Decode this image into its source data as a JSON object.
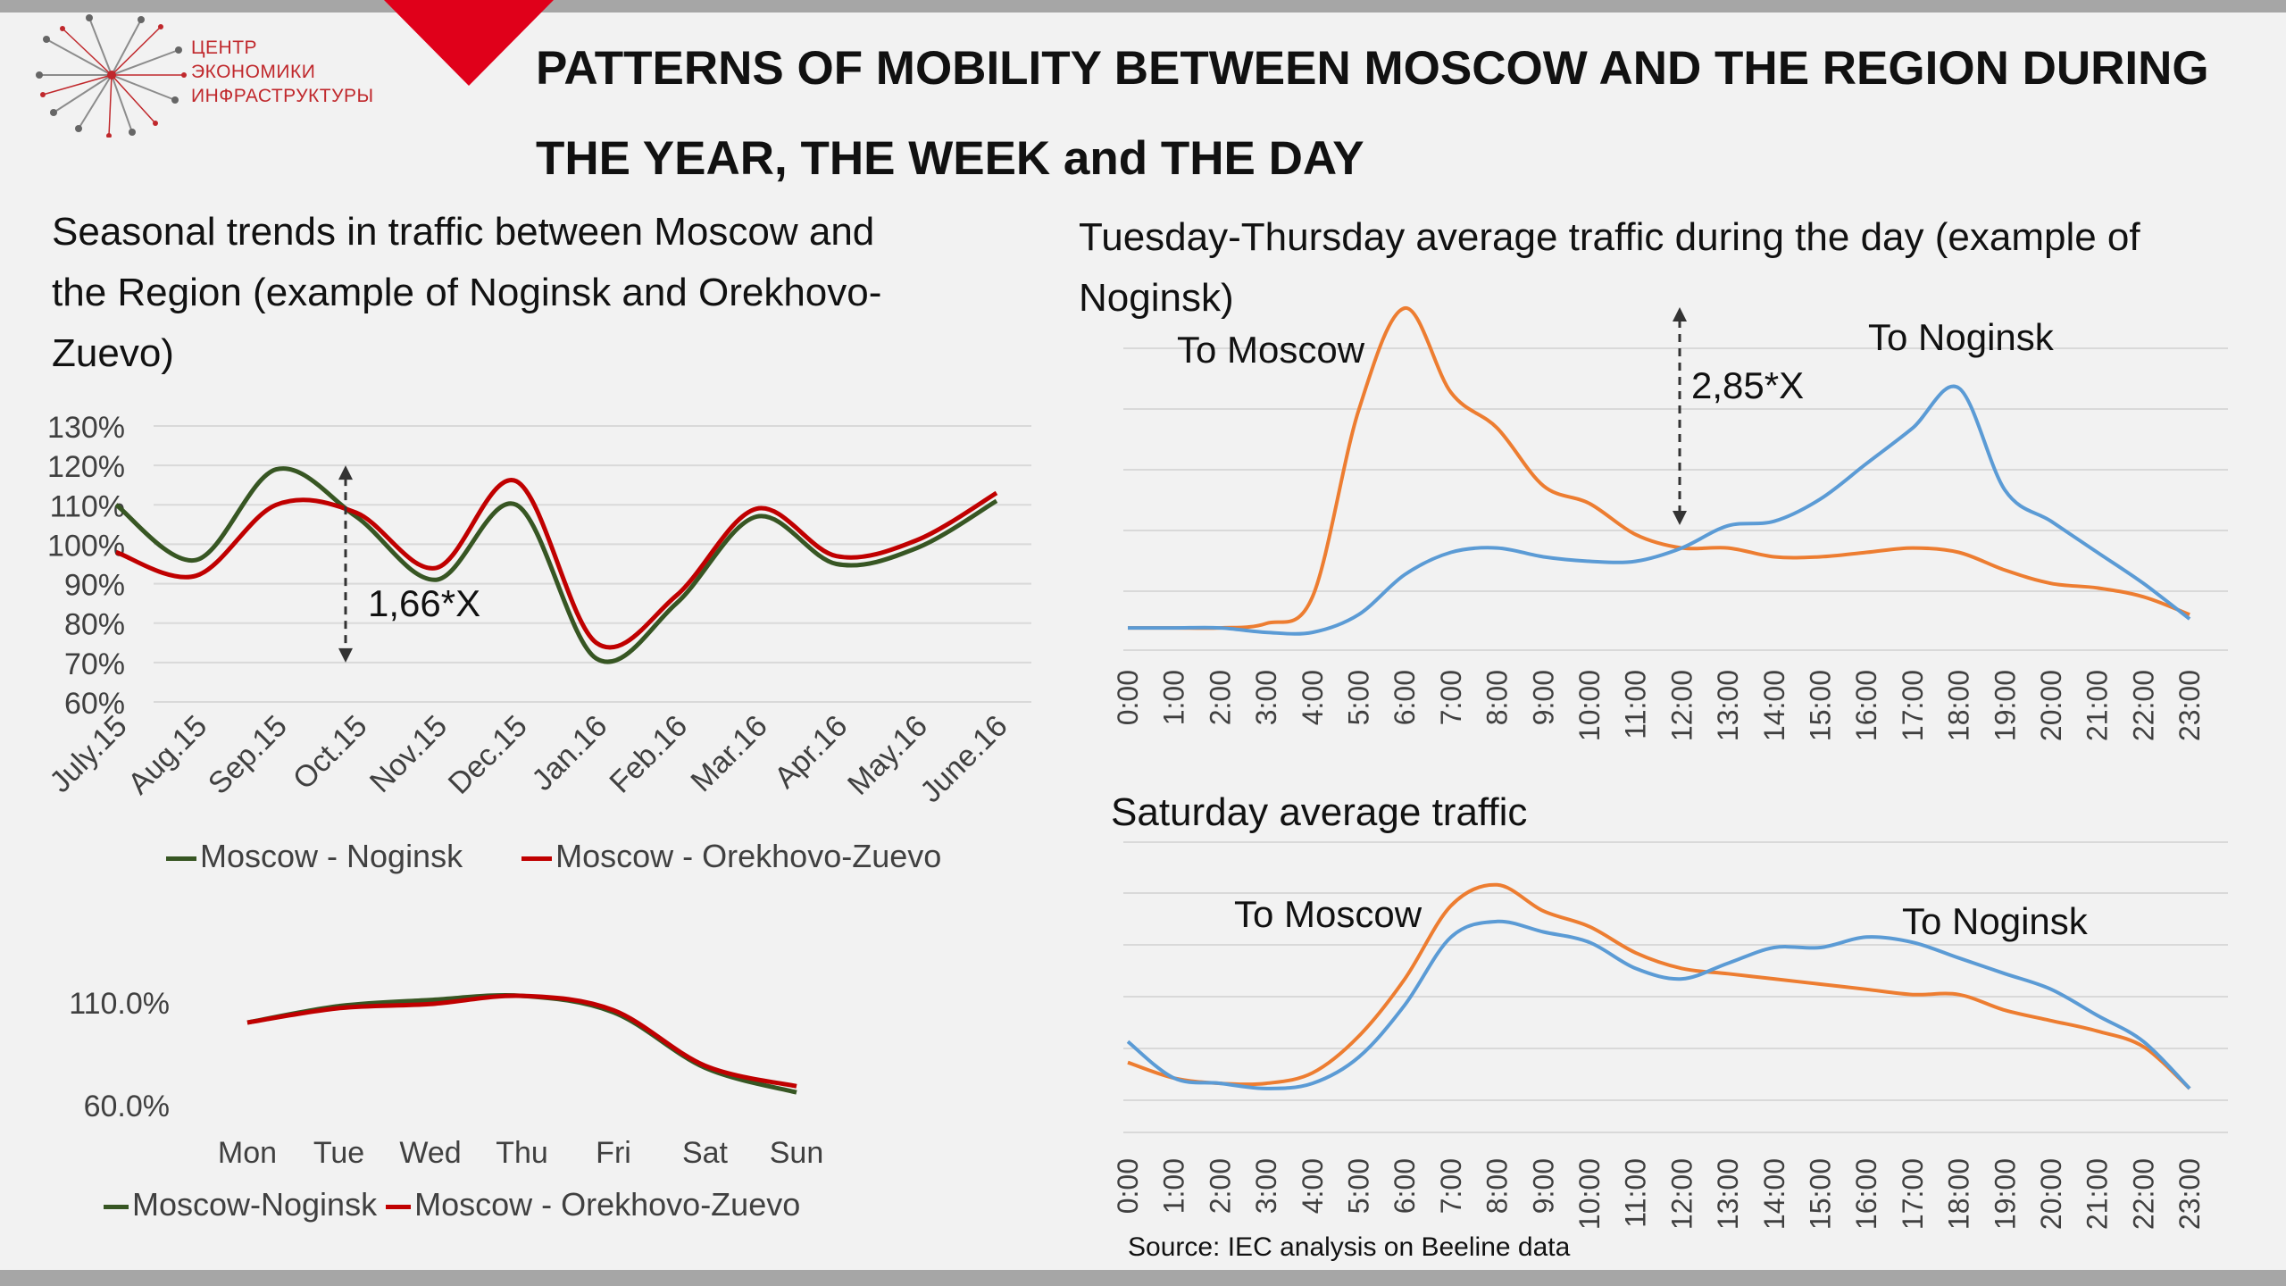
{
  "logo": {
    "line1": "ЦЕНТР",
    "line2": "ЭКОНОМИКИ",
    "line3": "ИНФРАСТРУКТУРЫ"
  },
  "main_title": "PATTERNS OF MOBILITY BETWEEN MOSCOW AND THE REGION DURING THE YEAR, THE WEEK and THE DAY",
  "source": "Source: IEC analysis on Beeline data",
  "colors": {
    "noginsk": "#375623",
    "orekhovo": "#c00000",
    "to_moscow": "#ed7d31",
    "to_noginsk": "#5b9bd5",
    "accent": "#c00000"
  },
  "chart_data": [
    {
      "type": "line",
      "title": "Seasonal trends in traffic between Moscow and  the Region (example of Noginsk and Orekhovo-Zuevo)",
      "categories": [
        "July.15",
        "Aug.15",
        "Sep.15",
        "Oct.15",
        "Nov.15",
        "Dec.15",
        "Jan.16",
        "Feb.16",
        "Mar.16",
        "Apr.16",
        "May.16",
        "June.16"
      ],
      "ylim": [
        60,
        130
      ],
      "yticks": [
        "60%",
        "70%",
        "80%",
        "90%",
        "100%",
        "110%",
        "120%",
        "130%"
      ],
      "grid": true,
      "legend": "bottom",
      "annotation": "1,66*X",
      "series": [
        {
          "name": "Moscow - Noginsk",
          "values": [
            110,
            96,
            119,
            107,
            91,
            110,
            71,
            85,
            107,
            95,
            99,
            111
          ]
        },
        {
          "name": "Moscow - Orekhovo-Zuevo",
          "values": [
            98,
            92,
            110,
            108,
            94,
            116,
            75,
            87,
            109,
            97,
            101,
            113
          ]
        }
      ]
    },
    {
      "type": "line",
      "categories": [
        "Mon",
        "Tue",
        "Wed",
        "Thu",
        "Fri",
        "Sat",
        "Sun"
      ],
      "ylim": [
        50,
        120
      ],
      "yticks": [
        "60.0%",
        "110.0%"
      ],
      "legend": "bottom",
      "series": [
        {
          "name": "Moscow-Noginsk",
          "values": [
            100,
            108,
            111,
            113,
            105,
            78,
            66
          ]
        },
        {
          "name": "Moscow - Orekhovo-Zuevo",
          "values": [
            100,
            107,
            109,
            113,
            106,
            79,
            69
          ]
        }
      ]
    },
    {
      "type": "line",
      "title": "Tuesday-Thursday average traffic during the day (example of Noginsk)",
      "x": [
        "0:00",
        "1:00",
        "2:00",
        "3:00",
        "4:00",
        "5:00",
        "6:00",
        "7:00",
        "8:00",
        "9:00",
        "10:00",
        "11:00",
        "12:00",
        "13:00",
        "14:00",
        "15:00",
        "16:00",
        "17:00",
        "18:00",
        "19:00",
        "20:00",
        "21:00",
        "22:00",
        "23:00"
      ],
      "annotation": "2,85*X",
      "series": [
        {
          "name": "To Moscow",
          "values": [
            3,
            3,
            3,
            4,
            10,
            52,
            75,
            56,
            48,
            35,
            31,
            24,
            21,
            21,
            19,
            19,
            20,
            21,
            20,
            16,
            13,
            12,
            10,
            6
          ]
        },
        {
          "name": "To Noginsk",
          "values": [
            3,
            3,
            3,
            2,
            2,
            6,
            15,
            20,
            21,
            19,
            18,
            18,
            21,
            26,
            27,
            32,
            40,
            48,
            57,
            34,
            27,
            20,
            13,
            5
          ]
        }
      ]
    },
    {
      "type": "line",
      "title": "Saturday average traffic",
      "x": [
        "0:00",
        "1:00",
        "2:00",
        "3:00",
        "4:00",
        "5:00",
        "6:00",
        "7:00",
        "8:00",
        "9:00",
        "10:00",
        "11:00",
        "12:00",
        "13:00",
        "14:00",
        "15:00",
        "16:00",
        "17:00",
        "18:00",
        "19:00",
        "20:00",
        "21:00",
        "22:00",
        "23:00"
      ],
      "series": [
        {
          "name": "To Moscow",
          "values": [
            11,
            8,
            7,
            7,
            9,
            16,
            27,
            41,
            45,
            40,
            37,
            32,
            29,
            28,
            27,
            26,
            25,
            24,
            24,
            21,
            19,
            17,
            14,
            6
          ]
        },
        {
          "name": "To Noginsk",
          "values": [
            15,
            8,
            7,
            6,
            7,
            12,
            22,
            35,
            38,
            36,
            34,
            29,
            27,
            30,
            33,
            33,
            35,
            34,
            31,
            28,
            25,
            20,
            15,
            6
          ]
        }
      ]
    }
  ]
}
